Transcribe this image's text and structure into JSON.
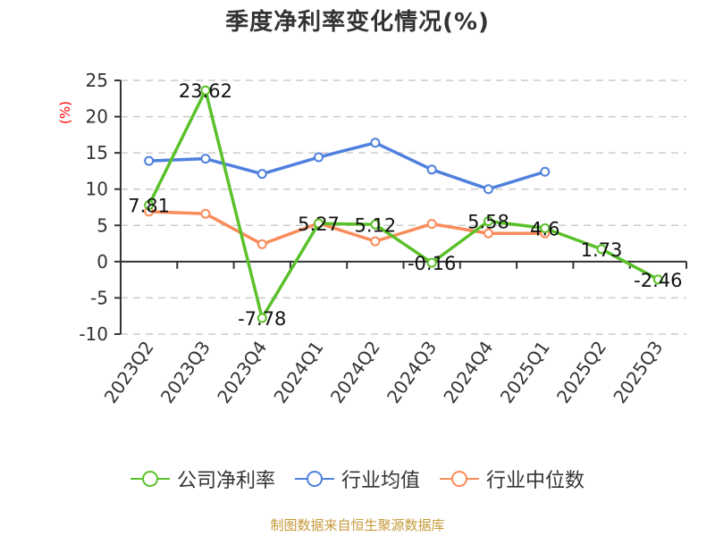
{
  "title": "季度净利率变化情况(%)",
  "footer": "制图数据来自恒生聚源数据库",
  "colors": {
    "company": "#5ac12a",
    "industry_avg": "#4f80dd",
    "industry_median": "#fa8b5a",
    "axis": "#333333",
    "grid": "#cccccc",
    "unit": "#ff0000",
    "footer": "#c59a3a"
  },
  "legend": [
    {
      "label": "公司净利率",
      "color": "#5ac12a",
      "icon": "line-circle-icon"
    },
    {
      "label": "行业均值",
      "color": "#4f80dd",
      "icon": "line-circle-icon"
    },
    {
      "label": "行业中位数",
      "color": "#fa8b5a",
      "icon": "line-circle-icon"
    }
  ],
  "chart_data": {
    "type": "line",
    "title": "季度净利率变化情况(%)",
    "xlabel": "",
    "ylabel": "(%)",
    "ylim": [
      -10,
      25
    ],
    "yticks": [
      25,
      20,
      15,
      10,
      5,
      0,
      -5,
      -10
    ],
    "grid": true,
    "legend_position": "bottom",
    "categories": [
      "2023Q2",
      "2023Q3",
      "2023Q4",
      "2024Q1",
      "2024Q2",
      "2024Q3",
      "2024Q4",
      "2025Q1",
      "2025Q2",
      "2025Q3"
    ],
    "series": [
      {
        "name": "公司净利率",
        "values": [
          7.81,
          23.62,
          -7.78,
          5.27,
          5.12,
          -0.16,
          5.58,
          4.6,
          1.73,
          -2.46
        ],
        "labels": [
          "7.81",
          "23.62",
          "-7.78",
          "5.27",
          "5.12",
          "-0.16",
          "5.58",
          "4.6",
          "1.73",
          "-2.46"
        ]
      },
      {
        "name": "行业均值",
        "values": [
          13.9,
          14.2,
          12.1,
          14.4,
          16.4,
          12.7,
          10.0,
          12.4,
          null,
          null
        ]
      },
      {
        "name": "行业中位数",
        "values": [
          6.9,
          6.6,
          2.4,
          5.3,
          2.8,
          5.2,
          3.9,
          3.9,
          null,
          null
        ]
      }
    ]
  }
}
